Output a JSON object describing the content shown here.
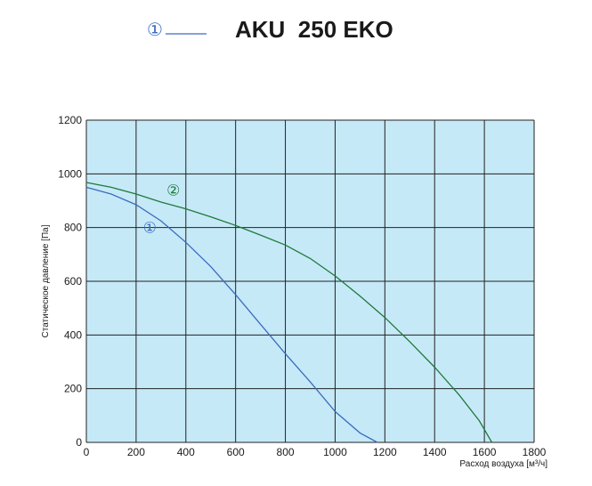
{
  "header": {
    "legend_marker": "①",
    "title": "AKU  250 EKO"
  },
  "colors": {
    "plot_background": "#c6e9f7",
    "grid": "#222222",
    "series_1": "#3a6cc0",
    "series_2": "#1e7a3c",
    "legend_line": "#3a6cc0"
  },
  "chart_data": {
    "type": "line",
    "title": "AKU  250 EKO",
    "xlabel": "Расход воздуха [м³/ч]",
    "ylabel": "Статическое давление [Па]",
    "xlim": [
      0,
      1800
    ],
    "ylim": [
      0,
      1200
    ],
    "x_ticks": [
      "0",
      "200",
      "400",
      "600",
      "800",
      "1000",
      "1200",
      "1400",
      "1600",
      "1800"
    ],
    "y_ticks": [
      "0",
      "200",
      "400",
      "600",
      "800",
      "1000",
      "1200"
    ],
    "grid": true,
    "series": [
      {
        "name": "①",
        "color": "#3a6cc0",
        "points": [
          [
            0,
            950
          ],
          [
            100,
            925
          ],
          [
            200,
            885
          ],
          [
            300,
            825
          ],
          [
            400,
            745
          ],
          [
            500,
            655
          ],
          [
            600,
            550
          ],
          [
            700,
            440
          ],
          [
            800,
            330
          ],
          [
            900,
            225
          ],
          [
            1000,
            115
          ],
          [
            1100,
            35
          ],
          [
            1170,
            0
          ]
        ]
      },
      {
        "name": "②",
        "color": "#1e7a3c",
        "points": [
          [
            0,
            968
          ],
          [
            100,
            950
          ],
          [
            200,
            925
          ],
          [
            300,
            895
          ],
          [
            400,
            870
          ],
          [
            500,
            840
          ],
          [
            600,
            808
          ],
          [
            700,
            772
          ],
          [
            800,
            735
          ],
          [
            900,
            685
          ],
          [
            1000,
            620
          ],
          [
            1100,
            545
          ],
          [
            1200,
            465
          ],
          [
            1300,
            375
          ],
          [
            1400,
            280
          ],
          [
            1500,
            175
          ],
          [
            1580,
            80
          ],
          [
            1630,
            0
          ]
        ]
      }
    ],
    "annotations": [
      {
        "text": "①",
        "x": 255,
        "y": 780,
        "series": 0
      },
      {
        "text": "②",
        "x": 350,
        "y": 920,
        "series": 1
      }
    ]
  }
}
